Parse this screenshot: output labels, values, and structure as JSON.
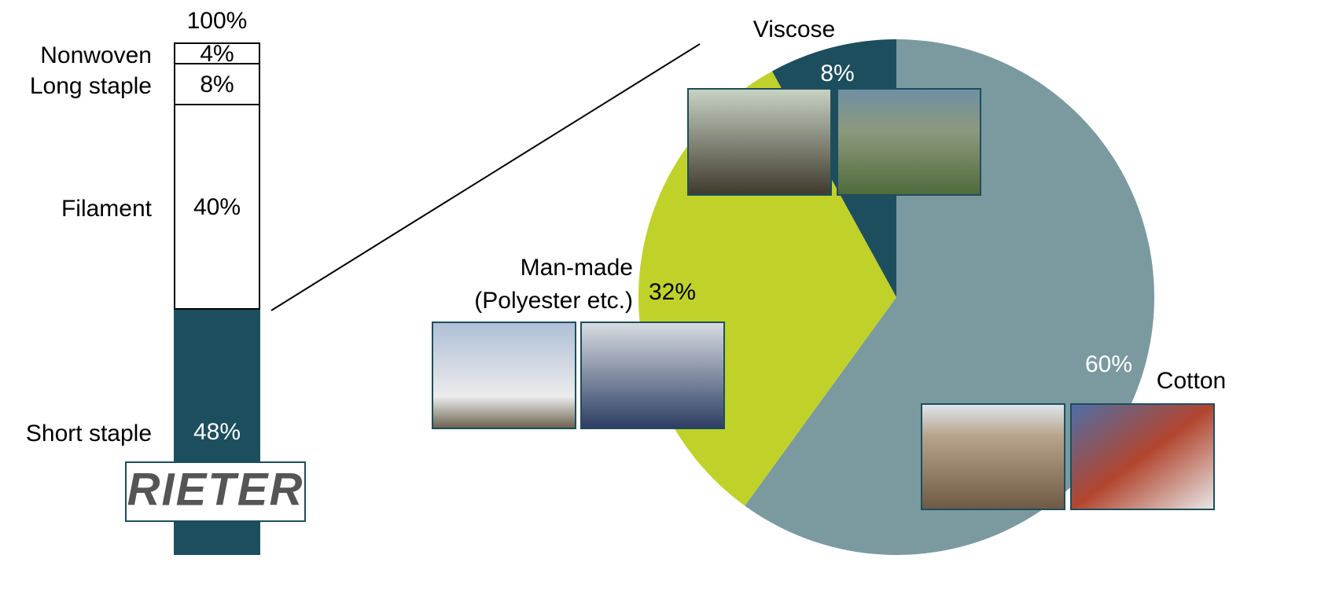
{
  "chart_data": [
    {
      "type": "stacked_bar",
      "total": 100,
      "total_label": "100%",
      "series": [
        {
          "name": "Short staple",
          "color": "#1d4e5e",
          "values": [
            48
          ],
          "value_labels": [
            "48%"
          ]
        },
        {
          "name": "Filament",
          "color": "#ffffff",
          "values": [
            40
          ],
          "value_labels": [
            "40%"
          ]
        },
        {
          "name": "Long staple",
          "color": "#ffffff",
          "values": [
            8
          ],
          "value_labels": [
            "8%"
          ]
        },
        {
          "name": "Nonwoven",
          "color": "#ffffff",
          "values": [
            4
          ],
          "value_labels": [
            "4%"
          ]
        }
      ],
      "ylim": [
        0,
        100
      ]
    },
    {
      "type": "pie",
      "categories": [
        "Cotton",
        "Man-made (Polyester etc.)",
        "Viscose"
      ],
      "values": [
        60,
        32,
        8
      ],
      "value_labels": [
        "60%",
        "32%",
        "8%"
      ],
      "colors": [
        "#7a9aa0",
        "#c0d22a",
        "#1d4e5e"
      ]
    }
  ],
  "logo": "RIETER"
}
